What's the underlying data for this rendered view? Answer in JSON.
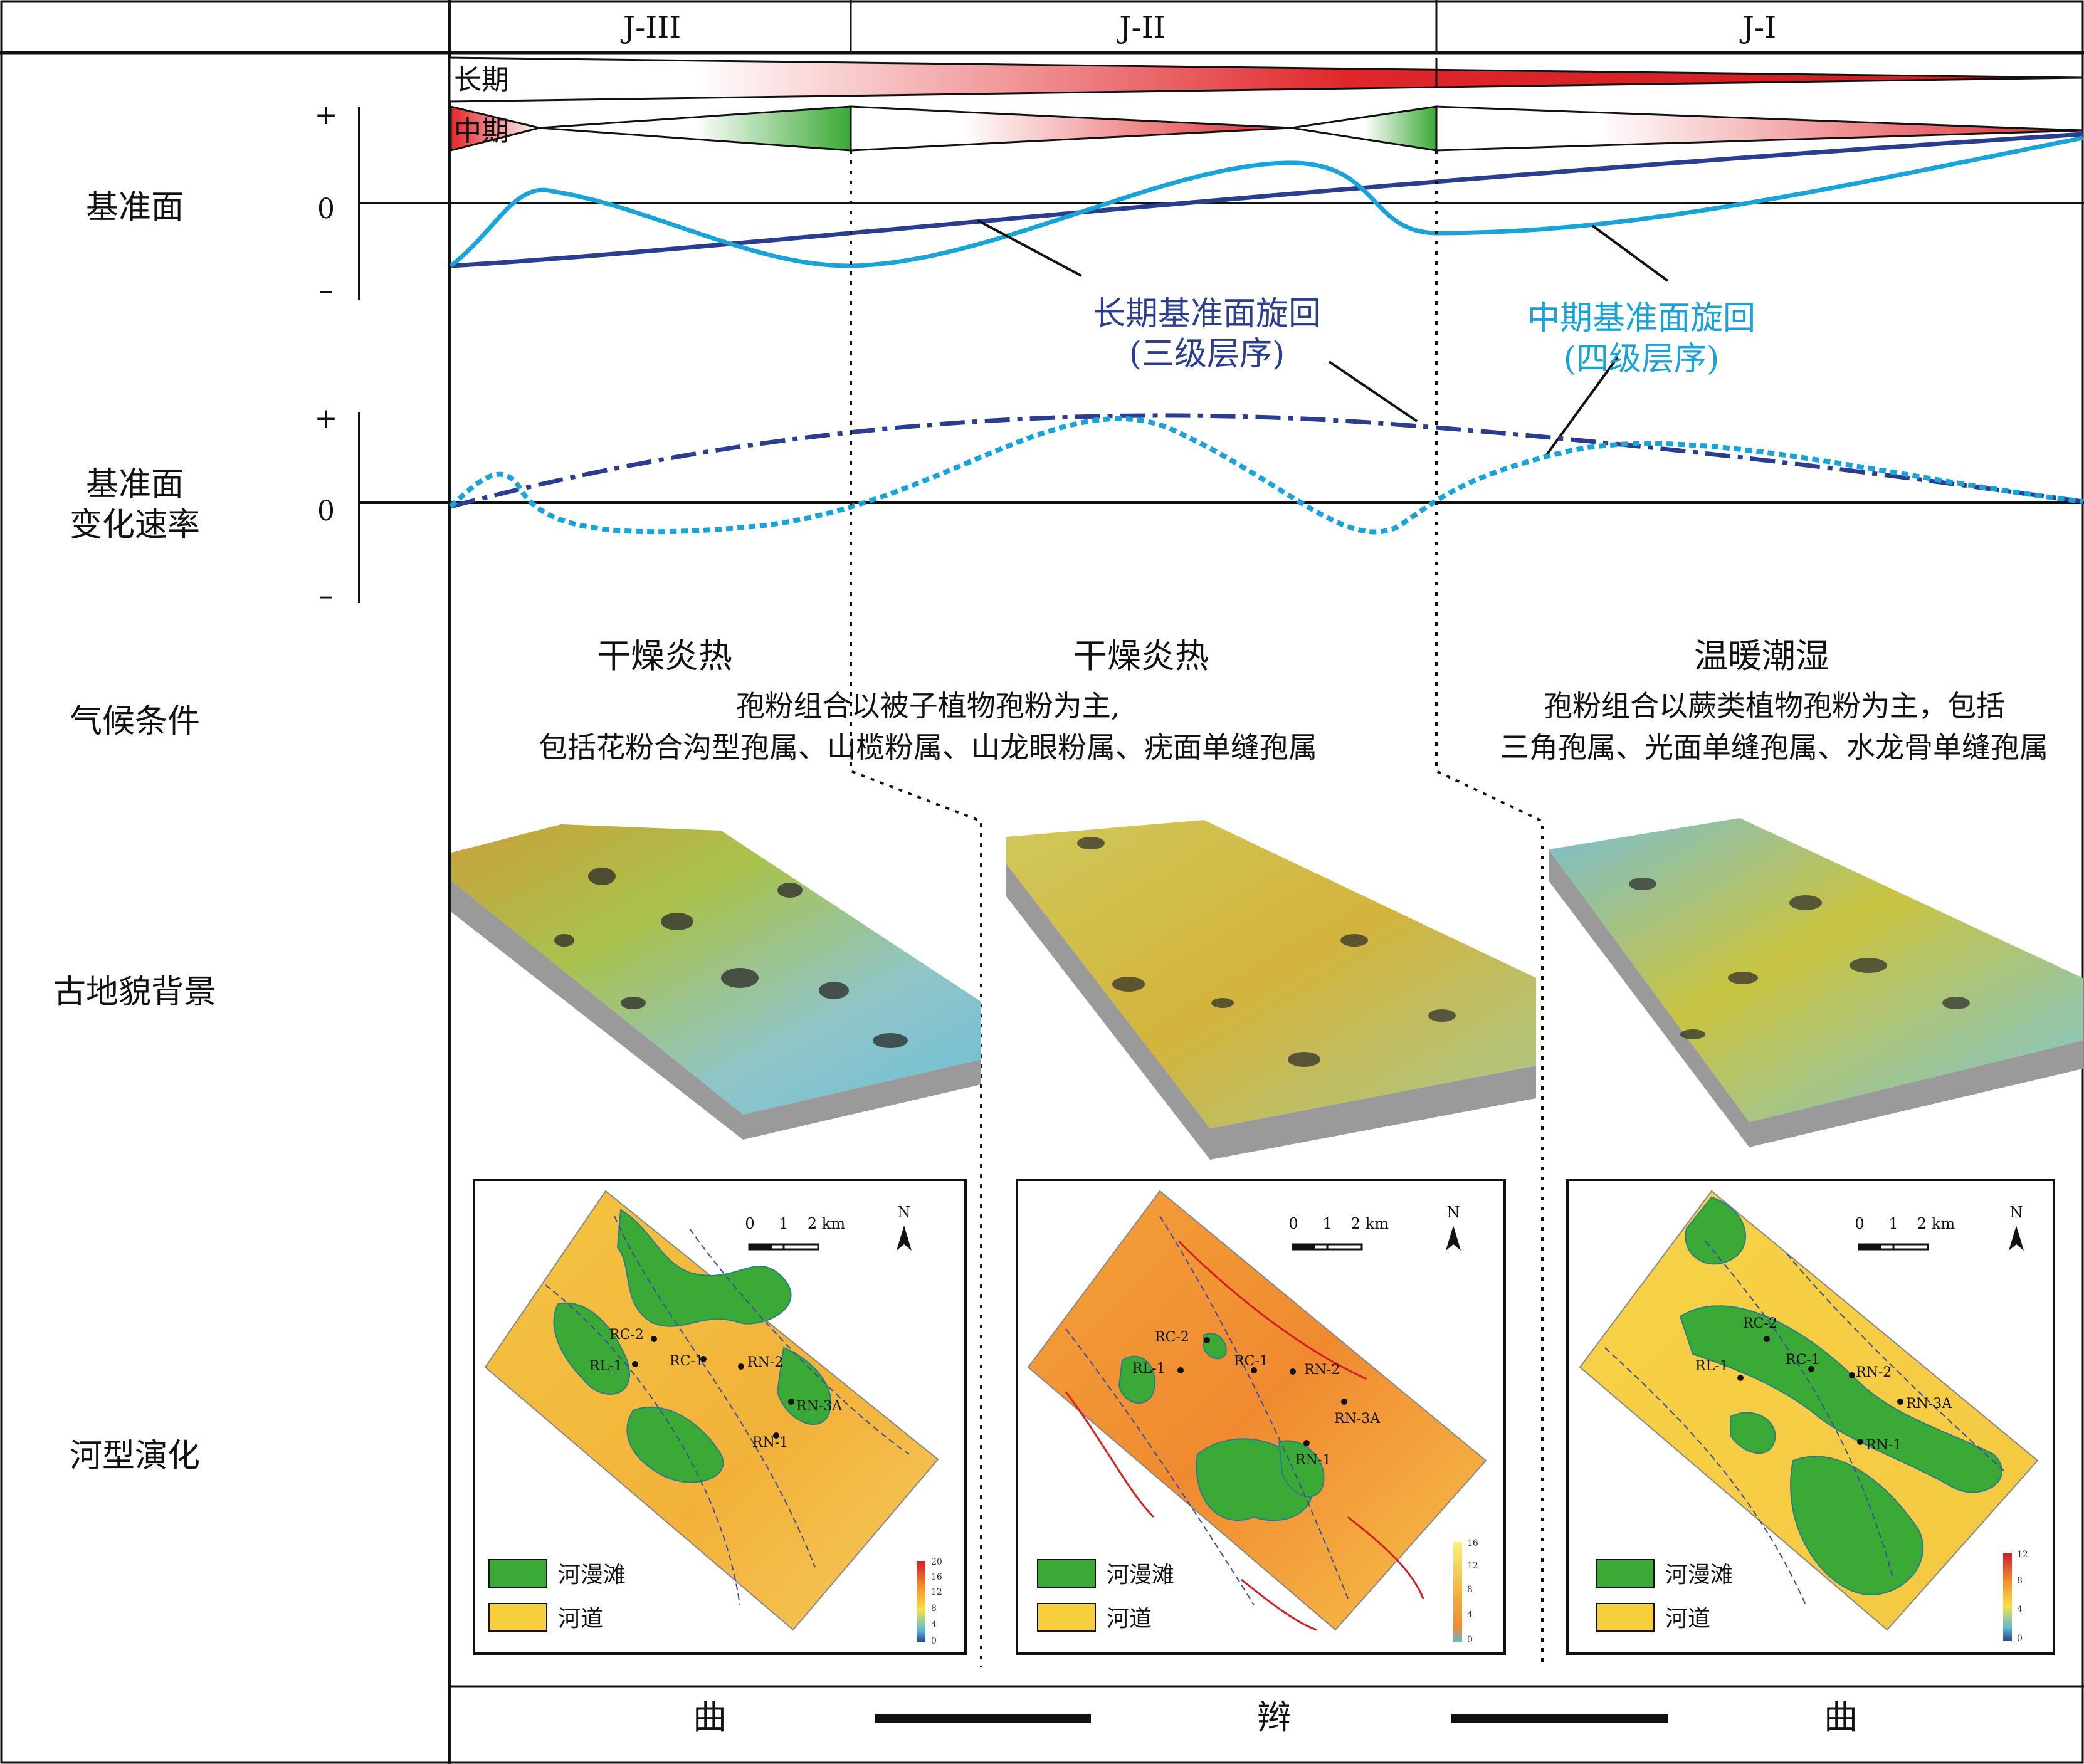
{
  "columns": [
    "J-III",
    "J-II",
    "J-I"
  ],
  "rows": {
    "base_level": "基准面",
    "base_rate_line1": "基准面",
    "base_rate_line2": "变化速率",
    "climate": "气候条件",
    "paleo": "古地貌背景",
    "river": "河型演化"
  },
  "signs": {
    "plus": "+",
    "zero": "0",
    "minus": "–"
  },
  "cycle_tracks": {
    "long": "长期",
    "mid": "中期"
  },
  "curve_labels": {
    "long_line1": "长期基准面旋回",
    "long_line2": "(三级层序)",
    "mid_line1": "中期基准面旋回",
    "mid_line2": "(四级层序)"
  },
  "climate": {
    "j3_title": "干燥炎热",
    "j2_title": "干燥炎热",
    "j1_title": "温暖潮湿",
    "left_desc_line1": "孢粉组合以被子植物孢粉为主,",
    "left_desc_line2": "包括花粉合沟型孢属、山榄粉属、山龙眼粉属、疣面单缝孢属",
    "right_desc_line1": "孢粉组合以蕨类植物孢粉为主，包括",
    "right_desc_line2": "三角孢属、光面单缝孢属、水龙骨单缝孢属"
  },
  "maps": {
    "scale_labels": [
      "0",
      "1",
      "2 km"
    ],
    "north": "N",
    "legend_floodplain": "河漫滩",
    "legend_channel": "河道",
    "wells": [
      "RC-2",
      "RL-1",
      "RC-1",
      "RN-2",
      "RN-3A",
      "RN-1"
    ],
    "colorbars": [
      [
        "20",
        "16",
        "12",
        "8",
        "4",
        "0"
      ],
      [
        "16",
        "12",
        "8",
        "4",
        "0"
      ],
      [
        "12",
        "8",
        "4",
        "0"
      ]
    ]
  },
  "bottom": {
    "left": "曲",
    "mid": "辫",
    "right": "曲"
  },
  "colors": {
    "long_curve": "#2b3d8f",
    "mid_curve": "#1aa3d9",
    "regression": "#e0262a",
    "transgression": "#3aa935",
    "floodplain": "#3aa935",
    "channel": "#f7cf3d"
  }
}
